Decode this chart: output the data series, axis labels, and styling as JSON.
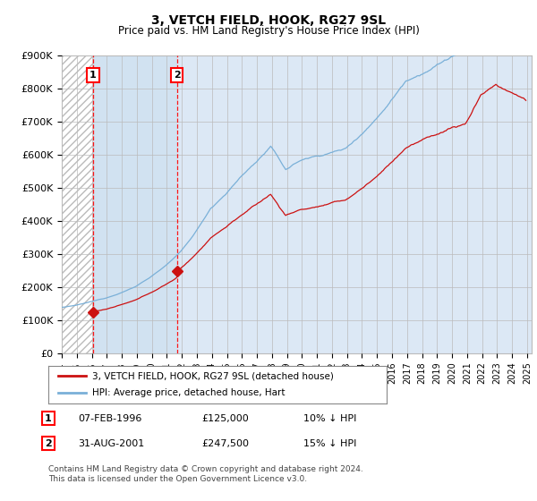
{
  "title": "3, VETCH FIELD, HOOK, RG27 9SL",
  "subtitle": "Price paid vs. HM Land Registry's House Price Index (HPI)",
  "ylim": [
    0,
    900000
  ],
  "yticks": [
    0,
    100000,
    200000,
    300000,
    400000,
    500000,
    600000,
    700000,
    800000,
    900000
  ],
  "ytick_labels": [
    "£0",
    "£100K",
    "£200K",
    "£300K",
    "£400K",
    "£500K",
    "£600K",
    "£700K",
    "£800K",
    "£900K"
  ],
  "x_start_year": 1994,
  "x_end_year": 2025,
  "purchase1_year": 1996.08,
  "purchase1_price": 125000,
  "purchase2_year": 2001.67,
  "purchase2_price": 247500,
  "hpi_color": "#7ab0d8",
  "price_color": "#cc1111",
  "legend_label1": "3, VETCH FIELD, HOOK, RG27 9SL (detached house)",
  "legend_label2": "HPI: Average price, detached house, Hart",
  "table_rows": [
    {
      "num": "1",
      "date": "07-FEB-1996",
      "price": "£125,000",
      "hpi": "10% ↓ HPI"
    },
    {
      "num": "2",
      "date": "31-AUG-2001",
      "price": "£247,500",
      "hpi": "15% ↓ HPI"
    }
  ],
  "footer": "Contains HM Land Registry data © Crown copyright and database right 2024.\nThis data is licensed under the Open Government Licence v3.0.",
  "bg_color": "#dce8f5",
  "hatch_color": "#aaaaaa",
  "grid_color": "#bbbbbb",
  "shade_between_color": "#dce8f5"
}
